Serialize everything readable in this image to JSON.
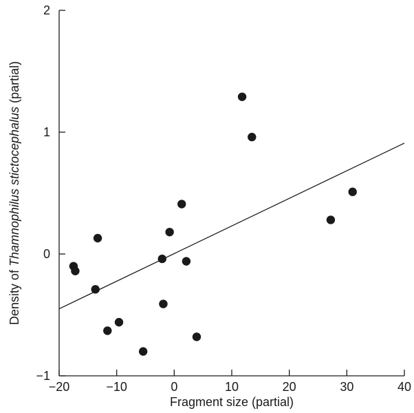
{
  "chart_data": {
    "type": "scatter",
    "title": "",
    "xlabel": "Fragment size (partial)",
    "ylabel_prefix": "Density of ",
    "ylabel_species": "Thamnophilus stictocephalus",
    "ylabel_suffix": " (partial)",
    "xlim": [
      -20,
      40
    ],
    "ylim": [
      -1,
      2
    ],
    "x_ticks": [
      -20,
      -10,
      0,
      10,
      20,
      30,
      40
    ],
    "x_tick_labels": [
      "−20",
      "−10",
      "0",
      "10",
      "20",
      "30",
      "40"
    ],
    "y_ticks": [
      -1,
      0,
      1,
      2
    ],
    "y_tick_labels": [
      "−1",
      "0",
      "1",
      "2"
    ],
    "grid": false,
    "points": [
      {
        "x": -17.5,
        "y": -0.1
      },
      {
        "x": -17.2,
        "y": -0.14
      },
      {
        "x": -13.3,
        "y": 0.13
      },
      {
        "x": -13.7,
        "y": -0.29
      },
      {
        "x": -11.6,
        "y": -0.63
      },
      {
        "x": -9.6,
        "y": -0.56
      },
      {
        "x": -5.4,
        "y": -0.8
      },
      {
        "x": -2.1,
        "y": -0.04
      },
      {
        "x": -1.9,
        "y": -0.41
      },
      {
        "x": -0.8,
        "y": 0.18
      },
      {
        "x": 1.3,
        "y": 0.41
      },
      {
        "x": 2.1,
        "y": -0.06
      },
      {
        "x": 3.9,
        "y": -0.68
      },
      {
        "x": 11.8,
        "y": 1.29
      },
      {
        "x": 13.5,
        "y": 0.96
      },
      {
        "x": 27.2,
        "y": 0.28
      },
      {
        "x": 31.0,
        "y": 0.51
      }
    ],
    "fit_line": {
      "x": [
        -20,
        40
      ],
      "y": [
        -0.45,
        0.91
      ]
    }
  }
}
